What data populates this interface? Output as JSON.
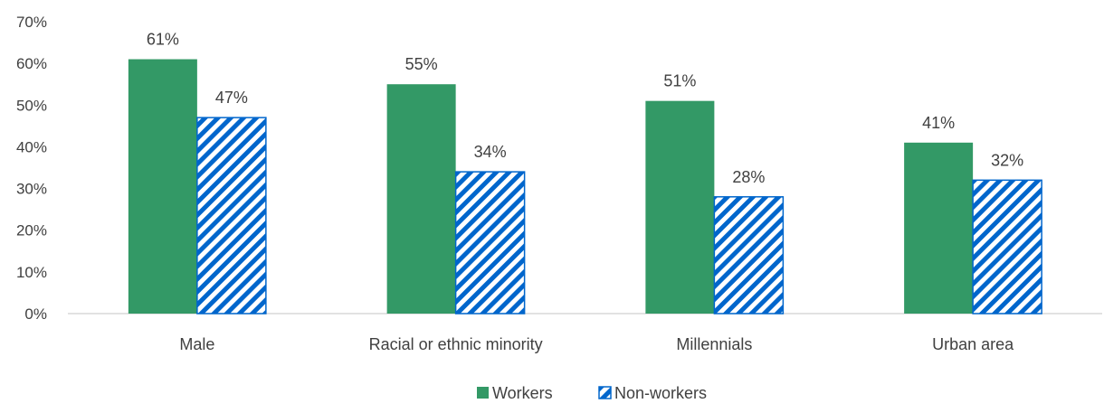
{
  "chart_data": {
    "type": "bar",
    "title": "",
    "xlabel": "",
    "ylabel": "",
    "categories": [
      "Male",
      "Racial or ethnic minority",
      "Millennials",
      "Urban area"
    ],
    "series": [
      {
        "name": "Workers",
        "values": [
          61,
          55,
          51,
          41
        ],
        "labels": [
          "61%",
          "55%",
          "51%",
          "41%"
        ],
        "color": "#339966",
        "pattern": "solid"
      },
      {
        "name": "Non-workers",
        "values": [
          47,
          34,
          28,
          32
        ],
        "labels": [
          "47%",
          "34%",
          "28%",
          "32%"
        ],
        "color": "#0066cc",
        "pattern": "diagonal-hatch"
      }
    ],
    "ylim": [
      0,
      70
    ],
    "yticks": [
      0,
      10,
      20,
      30,
      40,
      50,
      60,
      70
    ],
    "ytick_labels": [
      "0%",
      "10%",
      "20%",
      "30%",
      "40%",
      "50%",
      "60%",
      "70%"
    ],
    "grid": false,
    "legend_position": "bottom-center"
  }
}
